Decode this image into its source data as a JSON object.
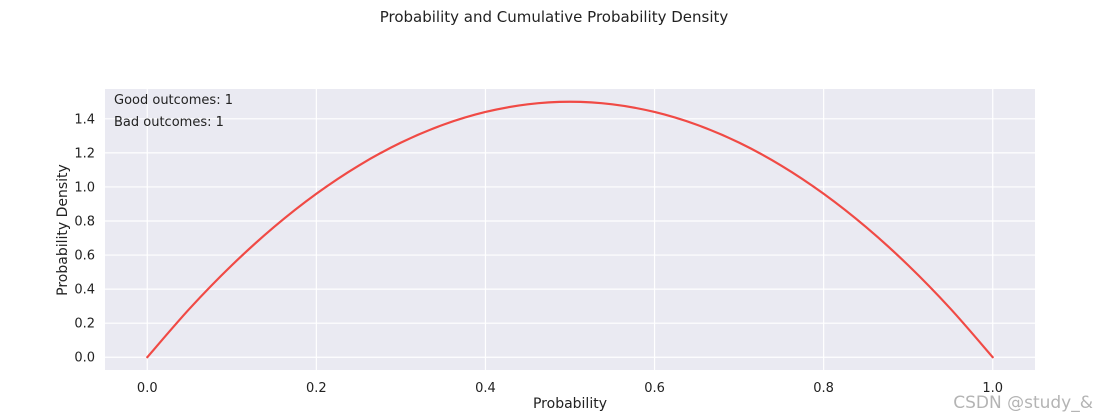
{
  "chart_data": {
    "type": "line",
    "title": "Probability and Cumulative Probability Density",
    "xlabel": "Probability",
    "ylabel": "Probability Density",
    "xlim": [
      -0.05,
      1.05
    ],
    "ylim": [
      -0.075,
      1.575
    ],
    "xticks": [
      0.0,
      0.2,
      0.4,
      0.6,
      0.8,
      1.0
    ],
    "xtick_labels": [
      "0.0",
      "0.2",
      "0.4",
      "0.6",
      "0.8",
      "1.0"
    ],
    "yticks": [
      0.0,
      0.2,
      0.4,
      0.6,
      0.8,
      1.0,
      1.2,
      1.4
    ],
    "ytick_labels": [
      "0.0",
      "0.2",
      "0.4",
      "0.6",
      "0.8",
      "1.0",
      "1.2",
      "1.4"
    ],
    "grid": true,
    "background": "#eaeaf2",
    "series": [
      {
        "color": "#f04a45",
        "x": [
          0.0,
          0.05,
          0.1,
          0.15,
          0.2,
          0.25,
          0.3,
          0.35,
          0.4,
          0.45,
          0.5,
          0.55,
          0.6,
          0.65,
          0.7,
          0.75,
          0.8,
          0.85,
          0.9,
          0.95,
          1.0
        ],
        "y": [
          0.0,
          0.285,
          0.54,
          0.765,
          0.96,
          1.125,
          1.26,
          1.365,
          1.44,
          1.485,
          1.5,
          1.485,
          1.44,
          1.365,
          1.26,
          1.125,
          0.96,
          0.765,
          0.54,
          0.285,
          0.0
        ]
      }
    ],
    "annotations": [
      "Good outcomes: 1",
      "Bad outcomes: 1"
    ]
  },
  "watermark": "CSDN @study_&"
}
